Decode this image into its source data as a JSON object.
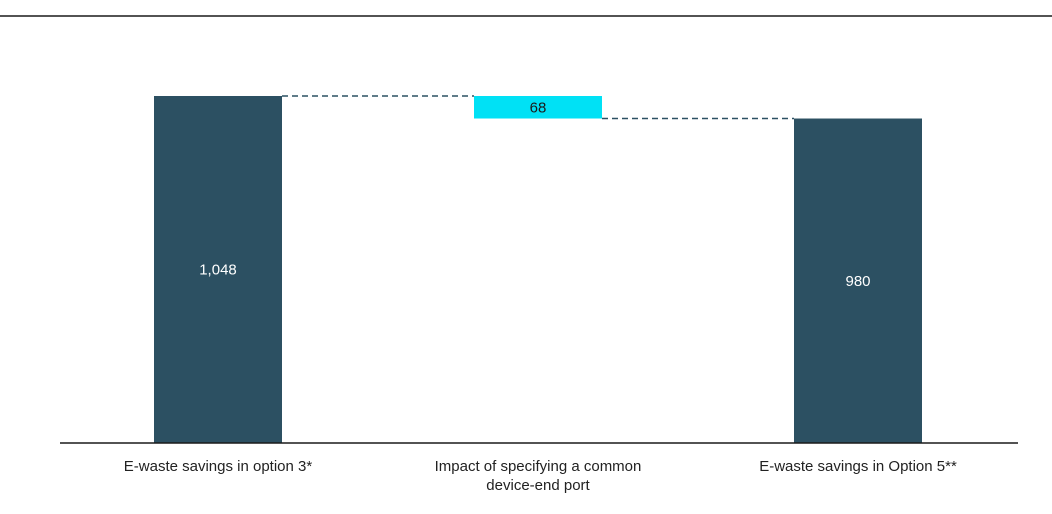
{
  "chart_data": {
    "type": "waterfall",
    "categories": [
      [
        "E-waste savings in option 3*"
      ],
      [
        "Impact of specifying a common",
        "device-end port"
      ],
      [
        "E-waste savings in Option 5**"
      ]
    ],
    "bars": [
      {
        "kind": "total",
        "base": 0,
        "value": 1048,
        "label": "1,048",
        "color": "#2c5062",
        "label_color": "#ffffff"
      },
      {
        "kind": "delta",
        "base": 980,
        "value": 68,
        "label": "68",
        "color": "#00e1f5",
        "label_color": "#1a1a1a"
      },
      {
        "kind": "total",
        "base": 0,
        "value": 980,
        "label": "980",
        "color": "#2c5062",
        "label_color": "#ffffff"
      }
    ],
    "ylim": [
      0,
      1148
    ],
    "connector_color": "#2c5062",
    "axis_color": "#1a1a1a"
  }
}
